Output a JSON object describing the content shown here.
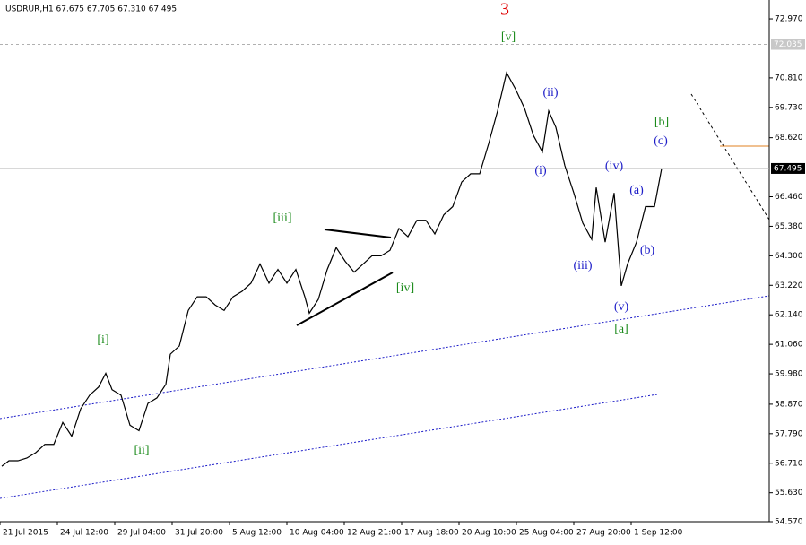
{
  "chart_data": {
    "type": "line",
    "title": "USDRUR,H1  67.675 67.705 67.310 67.495",
    "color": "#000000",
    "x": [
      2,
      10,
      20,
      30,
      40,
      50,
      60,
      70,
      80,
      90,
      100,
      110,
      118,
      125,
      135,
      145,
      155,
      165,
      175,
      185,
      190,
      200,
      210,
      220,
      230,
      240,
      250,
      260,
      270,
      280,
      290,
      300,
      310,
      320,
      330,
      340,
      345,
      355,
      365,
      375,
      385,
      395,
      405,
      415,
      425,
      435,
      445,
      455,
      465,
      475,
      485,
      495,
      505,
      515,
      525,
      535,
      545,
      555,
      565,
      575,
      585,
      595,
      605,
      612,
      620,
      630,
      640,
      650,
      660,
      665,
      675,
      685,
      693,
      700,
      710,
      720,
      730,
      738
    ],
    "values": [
      56.6,
      56.8,
      56.8,
      56.9,
      57.1,
      57.4,
      57.4,
      58.2,
      57.7,
      58.7,
      59.2,
      59.5,
      60.0,
      59.4,
      59.2,
      58.1,
      57.9,
      58.9,
      59.1,
      59.6,
      60.7,
      61.0,
      62.3,
      62.8,
      62.8,
      62.5,
      62.3,
      62.8,
      63.0,
      63.3,
      64.0,
      63.3,
      63.8,
      63.3,
      63.8,
      62.8,
      62.2,
      62.7,
      63.8,
      64.6,
      64.1,
      63.7,
      64.0,
      64.3,
      64.3,
      64.5,
      65.3,
      65.0,
      65.6,
      65.6,
      65.1,
      65.8,
      66.1,
      67.0,
      67.3,
      67.3,
      68.4,
      69.6,
      71.0,
      70.4,
      69.7,
      68.7,
      68.1,
      69.6,
      69.0,
      67.6,
      66.6,
      65.5,
      64.9,
      66.8,
      64.8,
      66.6,
      63.2,
      64.0,
      64.8,
      66.1,
      66.1,
      67.495
    ],
    "xlim": [
      0,
      858
    ],
    "xticks": [
      {
        "value": 0,
        "label": "21 Jul 2015"
      },
      {
        "value": 64,
        "label": "24 Jul 12:00"
      },
      {
        "value": 128,
        "label": "29 Jul 04:00"
      },
      {
        "value": 192,
        "label": "31 Jul 20:00"
      },
      {
        "value": 256,
        "label": "5 Aug 12:00"
      },
      {
        "value": 320,
        "label": "10 Aug 04:00"
      },
      {
        "value": 384,
        "label": "12 Aug 21:00"
      },
      {
        "value": 448,
        "label": "17 Aug 18:00"
      },
      {
        "value": 512,
        "label": "20 Aug 10:00"
      },
      {
        "value": 576,
        "label": "25 Aug 04:00"
      },
      {
        "value": 640,
        "label": "27 Aug 20:00"
      },
      {
        "value": 704,
        "label": "1 Sep 12:00"
      }
    ],
    "ylim": [
      54.57,
      73.66
    ],
    "yticks": [
      {
        "value": 72.97,
        "label": "72.970"
      },
      {
        "value": 70.81,
        "label": "70.810"
      },
      {
        "value": 69.73,
        "label": "69.730"
      },
      {
        "value": 68.62,
        "label": "68.620"
      },
      {
        "value": 66.46,
        "label": "66.460"
      },
      {
        "value": 65.38,
        "label": "65.380"
      },
      {
        "value": 64.3,
        "label": "64.300"
      },
      {
        "value": 63.22,
        "label": "63.220"
      },
      {
        "value": 62.14,
        "label": "62.140"
      },
      {
        "value": 61.06,
        "label": "61.060"
      },
      {
        "value": 59.98,
        "label": "59.980"
      },
      {
        "value": 58.87,
        "label": "58.870"
      },
      {
        "value": 57.79,
        "label": "57.790"
      },
      {
        "value": 56.71,
        "label": "56.710"
      },
      {
        "value": 55.63,
        "label": "55.630"
      },
      {
        "value": 54.57,
        "label": "54.570"
      }
    ],
    "price_lines": [
      {
        "value": 72.035,
        "label": "72.035"
      },
      {
        "value": 67.495,
        "label": "67.495"
      }
    ],
    "annotations": [
      {
        "text": "3",
        "color": "#e00000"
      },
      {
        "text": "[v]",
        "color": "#1a8a1a"
      },
      {
        "text": "[iii]",
        "color": "#1a8a1a"
      },
      {
        "text": "[i]",
        "color": "#1a8a1a"
      },
      {
        "text": "[ii]",
        "color": "#1a8a1a"
      },
      {
        "text": "[iv]",
        "color": "#1a8a1a"
      },
      {
        "text": "(i)",
        "color": "#1c1cc8"
      },
      {
        "text": "(ii)",
        "color": "#1c1cc8"
      },
      {
        "text": "(iii)",
        "color": "#1c1cc8"
      },
      {
        "text": "(iv)",
        "color": "#1c1cc8"
      },
      {
        "text": "(v)",
        "color": "#1c1cc8"
      },
      {
        "text": "[a]",
        "color": "#1a8a1a"
      },
      {
        "text": "(a)",
        "color": "#1c1cc8"
      },
      {
        "text": "(b)",
        "color": "#1c1cc8"
      },
      {
        "text": "(c)",
        "color": "#1c1cc8"
      },
      {
        "text": "[b]",
        "color": "#1a8a1a"
      }
    ]
  }
}
